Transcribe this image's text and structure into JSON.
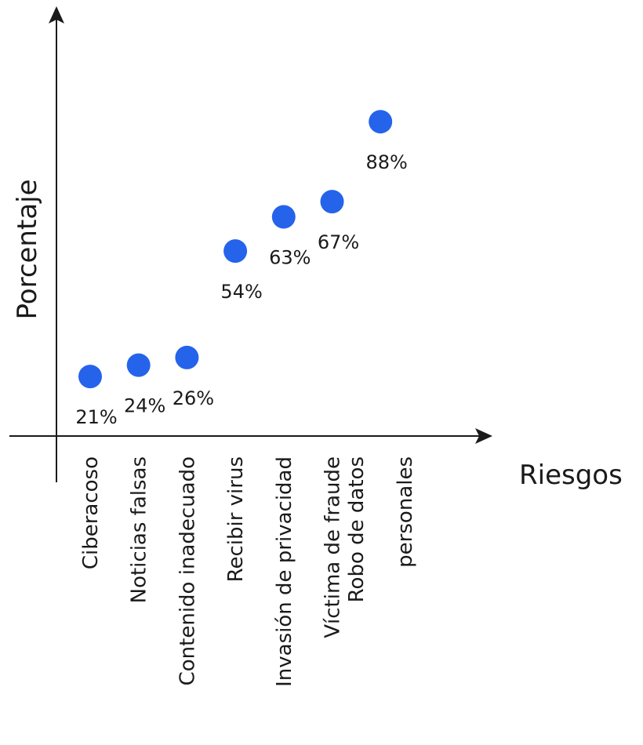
{
  "chart_data": {
    "type": "scatter",
    "xlabel": "Riesgos",
    "ylabel": "Porcentaje",
    "categories": [
      "Ciberacoso",
      "Noticias falsas",
      "Contenido inadecuado",
      "Recibir virus",
      "Invasión de privacidad",
      "Víctima de fraude",
      "Robo de datos personales"
    ],
    "category_lines": [
      [
        "Ciberacoso"
      ],
      [
        "Noticias falsas"
      ],
      [
        "Contenido inadecuado"
      ],
      [
        "Recibir virus"
      ],
      [
        "Invasión de privacidad"
      ],
      [
        "Víctima de fraude"
      ],
      [
        "Robo de datos",
        "personales"
      ]
    ],
    "series": [
      {
        "values": [
          21,
          24,
          26,
          54,
          63,
          67,
          88
        ]
      }
    ],
    "data_labels": [
      "21%",
      "24%",
      "26%",
      "54%",
      "63%",
      "67%",
      "88%"
    ],
    "point_color": "#2563eb",
    "axis_color": "#1a1a1a",
    "grid": false,
    "legend": "none"
  }
}
